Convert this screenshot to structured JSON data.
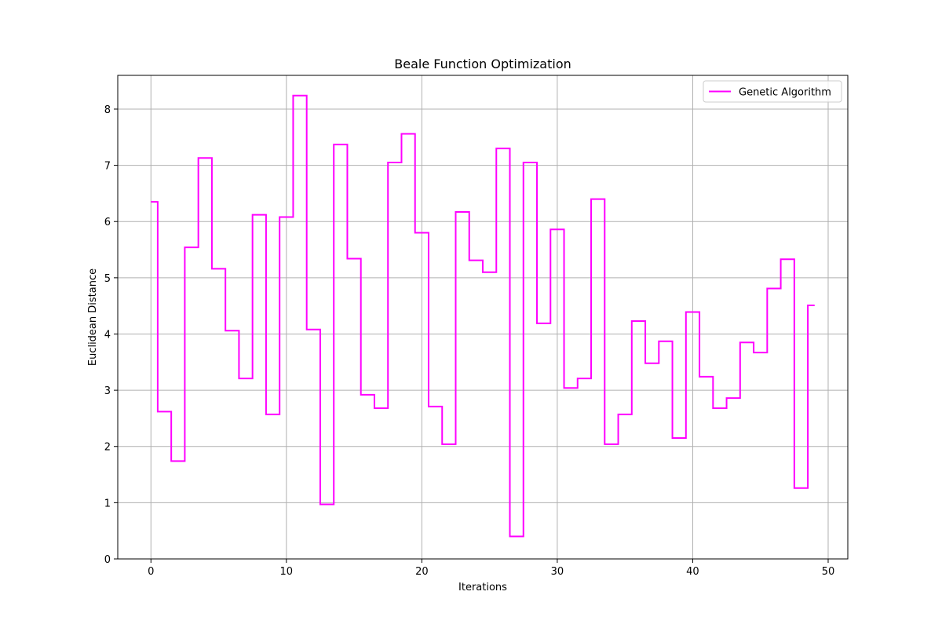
{
  "chart_data": {
    "type": "line",
    "drawstyle": "steps-mid",
    "title": "Beale Function Optimization",
    "xlabel": "Iterations",
    "ylabel": "Euclidean Distance",
    "xlim": [
      -2.45,
      51.45
    ],
    "ylim": [
      0,
      8.6
    ],
    "xticks": [
      0,
      10,
      20,
      30,
      40,
      50
    ],
    "yticks": [
      0,
      1,
      2,
      3,
      4,
      5,
      6,
      7,
      8
    ],
    "grid": true,
    "legend_position": "upper-right",
    "series": [
      {
        "name": "Genetic Algorithm",
        "color": "#ff00ff",
        "x": [
          0,
          1,
          2,
          3,
          4,
          5,
          6,
          7,
          8,
          9,
          10,
          11,
          12,
          13,
          14,
          15,
          16,
          17,
          18,
          19,
          20,
          21,
          22,
          23,
          24,
          25,
          26,
          27,
          28,
          29,
          30,
          31,
          32,
          33,
          34,
          35,
          36,
          37,
          38,
          39,
          40,
          41,
          42,
          43,
          44,
          45,
          46,
          47,
          48,
          49
        ],
        "values": [
          6.35,
          2.62,
          1.74,
          5.54,
          7.13,
          5.16,
          4.06,
          3.21,
          6.12,
          2.57,
          6.08,
          8.24,
          4.08,
          0.97,
          7.37,
          5.34,
          2.92,
          2.68,
          7.05,
          7.56,
          5.8,
          2.71,
          2.04,
          6.17,
          5.31,
          5.1,
          7.3,
          0.4,
          7.05,
          4.19,
          5.86,
          3.04,
          3.21,
          6.4,
          2.04,
          2.57,
          4.23,
          3.48,
          3.87,
          2.15,
          4.39,
          3.24,
          2.68,
          2.86,
          3.85,
          3.67,
          4.81,
          5.33,
          1.26,
          4.51
        ]
      }
    ]
  }
}
